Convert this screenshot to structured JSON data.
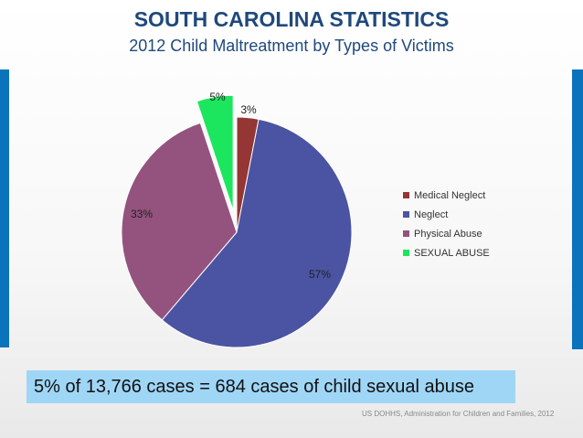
{
  "header": {
    "title": "SOUTH CAROLINA STATISTICS",
    "subtitle": "2012 Child Maltreatment by Types of Victims"
  },
  "colors": {
    "side_bar": "#0b72bc",
    "title": "#1f497d"
  },
  "chart_data": {
    "type": "pie",
    "title": "2012 Child Maltreatment by Types of Victims",
    "exploded": "SEXUAL ABUSE",
    "slices": [
      {
        "name": "Medical Neglect",
        "value": 3,
        "label": "3%",
        "color": "#943634"
      },
      {
        "name": "Neglect",
        "value": 57,
        "label": "57%",
        "color": "#4b53a3"
      },
      {
        "name": "Physical Abuse",
        "value": 33,
        "label": "33%",
        "color": "#93537e"
      },
      {
        "name": "SEXUAL ABUSE",
        "value": 5,
        "label": "5%",
        "color": "#1ce65e"
      }
    ],
    "legend_position": "right"
  },
  "callout": {
    "text": "5% of 13,766 cases = 684 cases of child sexual abuse"
  },
  "source": {
    "text": "US DOHHS, Administration for Children and Families, 2012"
  }
}
